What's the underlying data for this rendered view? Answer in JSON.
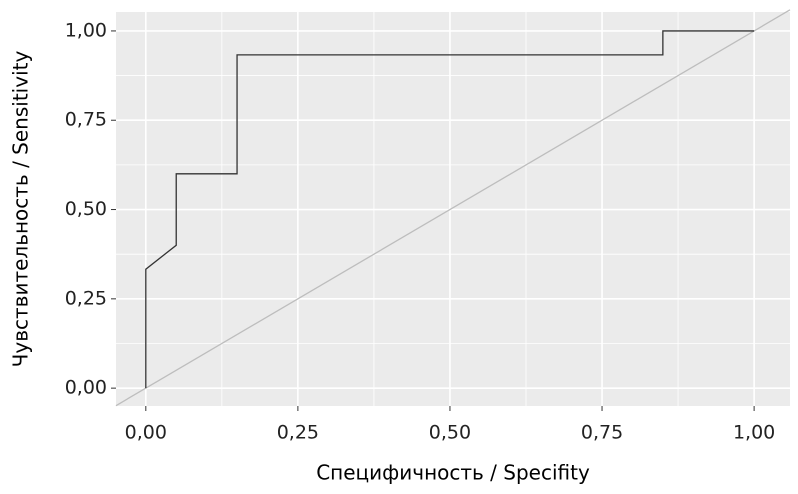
{
  "chart_data": {
    "type": "line",
    "x_label": "Специфичность / Specifity",
    "y_label": "Чувствительность / Sensitivity",
    "xlim": [
      -0.049,
      1.059
    ],
    "ylim": [
      -0.05,
      1.053
    ],
    "xticks": [
      {
        "value": 0,
        "label": "0,00"
      },
      {
        "value": 0.25,
        "label": "0,25"
      },
      {
        "value": 0.5,
        "label": "0,50"
      },
      {
        "value": 0.75,
        "label": "0,75"
      },
      {
        "value": 1,
        "label": "1,00"
      }
    ],
    "yticks": [
      {
        "value": 0,
        "label": "0,00"
      },
      {
        "value": 0.25,
        "label": "0,25"
      },
      {
        "value": 0.5,
        "label": "0,50"
      },
      {
        "value": 0.75,
        "label": "0,75"
      },
      {
        "value": 1,
        "label": "1,00"
      }
    ],
    "grid": true,
    "series": [
      {
        "color": "#bdbdbd",
        "x": [
          -0.049,
          1.059
        ],
        "values": [
          -0.049,
          1.059
        ]
      },
      {
        "color": "#333333",
        "x": [
          0,
          0,
          0.05,
          0.05,
          0.15,
          0.15,
          0.85,
          0.85,
          1
        ],
        "values": [
          0,
          0.333,
          0.4,
          0.6,
          0.6,
          0.933,
          0.933,
          1,
          1
        ]
      }
    ]
  }
}
